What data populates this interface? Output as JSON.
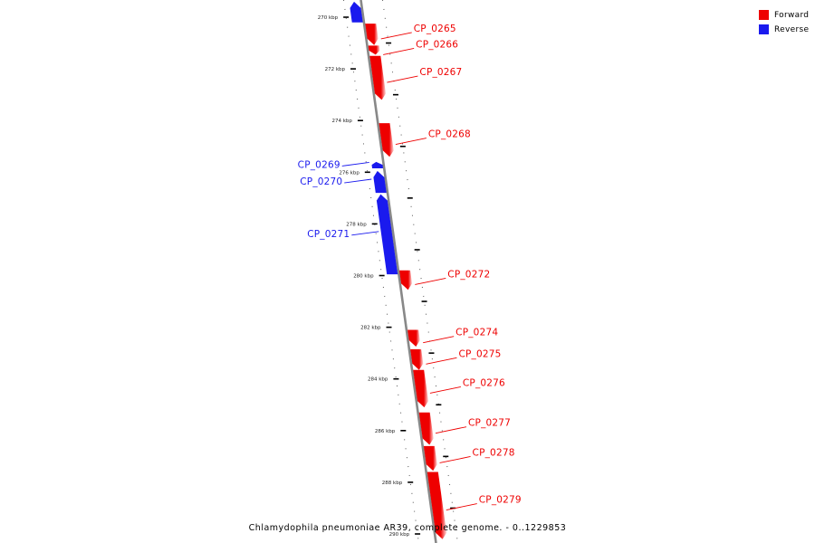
{
  "caption": "Chlamydophila pneumoniae AR39, complete genome. - 0..1229853",
  "colors": {
    "forward": "#ee0000",
    "reverse": "#1a1aee",
    "backbone": "#888888"
  },
  "legend": [
    {
      "label": "Forward",
      "strand": "forward"
    },
    {
      "label": "Reverse",
      "strand": "reverse"
    }
  ],
  "axis": {
    "range_kbp": [
      269.4,
      290.2
    ],
    "tick_step_kbp": 2
  },
  "ticks": [
    {
      "kbp": 270,
      "label": "270 kbp"
    },
    {
      "kbp": 272,
      "label": "272 kbp"
    },
    {
      "kbp": 274,
      "label": "274 kbp"
    },
    {
      "kbp": 276,
      "label": "276 kbp"
    },
    {
      "kbp": 278,
      "label": "278 kbp"
    },
    {
      "kbp": 280,
      "label": "280 kbp"
    },
    {
      "kbp": 282,
      "label": "282 kbp"
    },
    {
      "kbp": 284,
      "label": "284 kbp"
    },
    {
      "kbp": 286,
      "label": "286 kbp"
    },
    {
      "kbp": 288,
      "label": "288 kbp"
    },
    {
      "kbp": 290,
      "label": "290 kbp"
    }
  ],
  "genes": [
    {
      "name": "",
      "strand": "reverse",
      "start_kbp": 269.4,
      "end_kbp": 270.2
    },
    {
      "name": "CP_0265",
      "strand": "forward",
      "start_kbp": 270.25,
      "end_kbp": 271.08
    },
    {
      "name": "CP_0266",
      "strand": "forward",
      "start_kbp": 271.1,
      "end_kbp": 271.45
    },
    {
      "name": "CP_0267",
      "strand": "forward",
      "start_kbp": 271.5,
      "end_kbp": 273.2
    },
    {
      "name": "CP_0268",
      "strand": "forward",
      "start_kbp": 274.1,
      "end_kbp": 275.4
    },
    {
      "name": "CP_0269",
      "strand": "reverse",
      "start_kbp": 275.6,
      "end_kbp": 275.85
    },
    {
      "name": "CP_0270",
      "strand": "reverse",
      "start_kbp": 275.95,
      "end_kbp": 276.8
    },
    {
      "name": "CP_0271",
      "strand": "reverse",
      "start_kbp": 276.85,
      "end_kbp": 279.95
    },
    {
      "name": "CP_0272",
      "strand": "forward",
      "start_kbp": 279.8,
      "end_kbp": 280.55
    },
    {
      "name": "CP_0274",
      "strand": "forward",
      "start_kbp": 282.1,
      "end_kbp": 282.75
    },
    {
      "name": "CP_0275",
      "strand": "forward",
      "start_kbp": 282.85,
      "end_kbp": 283.65
    },
    {
      "name": "CP_0276",
      "strand": "forward",
      "start_kbp": 283.65,
      "end_kbp": 285.1
    },
    {
      "name": "CP_0277",
      "strand": "forward",
      "start_kbp": 285.3,
      "end_kbp": 286.55
    },
    {
      "name": "CP_0278",
      "strand": "forward",
      "start_kbp": 286.6,
      "end_kbp": 287.55
    },
    {
      "name": "CP_0279",
      "strand": "forward",
      "start_kbp": 287.6,
      "end_kbp": 290.2
    }
  ]
}
